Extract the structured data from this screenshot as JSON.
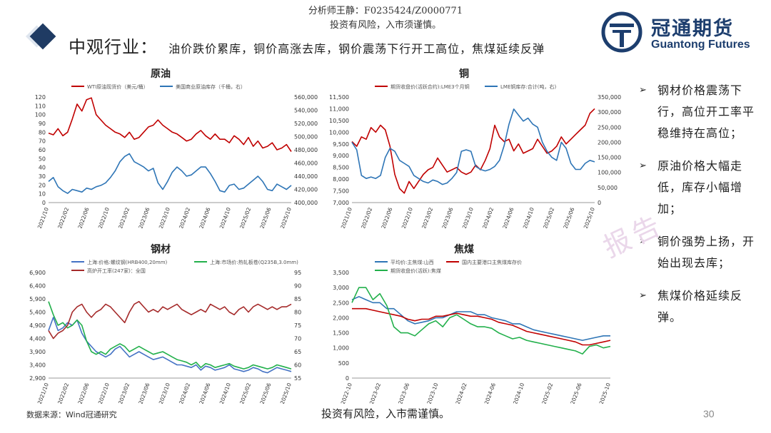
{
  "header": {
    "analyst_line": "分析师王静：F0235424/Z0000771",
    "risk_line": "投资有风险，入市须谨慎。",
    "title_main": "中观行业：",
    "title_sub": "油价跌价累库，铜价高涨去库，钢价震荡下行开工高位，焦煤延续反弹"
  },
  "logo": {
    "cn": "冠通期货",
    "en": "Guantong Futures"
  },
  "colors": {
    "red": "#c00000",
    "blue": "#2e75b6",
    "green": "#22b04b",
    "darkred": "#a52a2a",
    "navy": "#1d3e6e"
  },
  "bullets": [
    "钢材价格震荡下行，高位开工率平稳维持在高位；",
    "原油价格大幅走低，库存小幅增加；",
    "铜价强势上扬，开始出现去库；",
    "焦煤价格延续反弹。"
  ],
  "watermark": "报告",
  "source": "数据来源：Wind冠通研究",
  "footer": "投资有风险，入市需谨慎。",
  "page_number": "30",
  "chart_data": [
    {
      "type": "line",
      "title": "原油",
      "x_labels": [
        "2021/10",
        "2022/02",
        "2022/06",
        "2022/10",
        "2023/02",
        "2023/06",
        "2023/10",
        "2024/02",
        "2024/06",
        "2024/10",
        "2025/02",
        "2025/06",
        "2025/10"
      ],
      "left_ylim": [
        0,
        120
      ],
      "left_ticks": [
        "0",
        "10",
        "20",
        "30",
        "40",
        "50",
        "60",
        "70",
        "80",
        "90",
        "100",
        "110",
        "120"
      ],
      "right_ylim": [
        400000,
        560000
      ],
      "right_ticks": [
        "400,000",
        "420,000",
        "440,000",
        "460,000",
        "480,000",
        "500,000",
        "520,000",
        "540,000",
        "560,000"
      ],
      "series": [
        {
          "name": "WTI原油现货价（美元/桶）",
          "axis": "left",
          "color": "#c00000",
          "values": [
            79,
            77,
            84,
            76,
            80,
            95,
            112,
            104,
            117,
            119,
            100,
            94,
            88,
            84,
            80,
            78,
            74,
            80,
            72,
            74,
            80,
            86,
            88,
            94,
            88,
            84,
            80,
            78,
            74,
            70,
            72,
            78,
            82,
            76,
            72,
            78,
            72,
            72,
            68,
            76,
            72,
            66,
            74,
            64,
            70,
            62,
            64,
            68,
            60,
            62,
            66,
            58
          ]
        },
        {
          "name": "美国商业原油库存（千桶，右）",
          "axis": "right",
          "color": "#2e75b6",
          "values": [
            432000,
            438000,
            424000,
            418000,
            414000,
            420000,
            418000,
            416000,
            422000,
            420000,
            424000,
            426000,
            430000,
            438000,
            448000,
            462000,
            470000,
            474000,
            462000,
            458000,
            454000,
            448000,
            452000,
            430000,
            420000,
            432000,
            446000,
            454000,
            448000,
            440000,
            442000,
            448000,
            454000,
            454000,
            444000,
            432000,
            418000,
            416000,
            426000,
            428000,
            420000,
            422000,
            428000,
            434000,
            440000,
            432000,
            420000,
            418000,
            428000,
            424000,
            420000,
            426000
          ]
        }
      ]
    },
    {
      "type": "line",
      "title": "铜",
      "x_labels": [
        "2021/10",
        "2022/02",
        "2022/06",
        "2022/10",
        "2023/02",
        "2023/06",
        "2023/10",
        "2024/02",
        "2024/06",
        "2024/10",
        "2025/02",
        "2025/06",
        "2025/10"
      ],
      "left_ylim": [
        7000,
        11500
      ],
      "left_ticks": [
        "7,000",
        "7,500",
        "8,000",
        "8,500",
        "9,000",
        "9,500",
        "10,000",
        "10,500",
        "11,000",
        "11,500"
      ],
      "right_ylim": [
        0,
        350000
      ],
      "right_ticks": [
        "0",
        "50,000",
        "100,000",
        "150,000",
        "200,000",
        "250,000",
        "300,000",
        "350,000"
      ],
      "series": [
        {
          "name": "期货收盘价(活跃合约):LME3个月铜",
          "axis": "left",
          "color": "#c00000",
          "values": [
            9600,
            9400,
            9800,
            9700,
            10200,
            10000,
            10300,
            10100,
            9400,
            8200,
            7600,
            7400,
            7900,
            7600,
            7900,
            8200,
            8400,
            8500,
            8900,
            8600,
            8300,
            8400,
            8500,
            8300,
            8200,
            8300,
            8600,
            8400,
            8800,
            9300,
            10300,
            9800,
            9600,
            9700,
            9200,
            9500,
            9100,
            9200,
            9300,
            9700,
            9400,
            9100,
            9200,
            9400,
            9800,
            9500,
            9700,
            9900,
            10100,
            10300,
            10800,
            11000
          ]
        },
        {
          "name": "LME铜库存:合计(吨，右)",
          "axis": "right",
          "color": "#2e75b6",
          "values": [
            200000,
            175000,
            90000,
            80000,
            85000,
            80000,
            90000,
            150000,
            180000,
            170000,
            140000,
            130000,
            120000,
            90000,
            80000,
            70000,
            65000,
            75000,
            70000,
            60000,
            65000,
            80000,
            100000,
            170000,
            175000,
            170000,
            120000,
            110000,
            105000,
            110000,
            120000,
            140000,
            190000,
            260000,
            310000,
            290000,
            270000,
            280000,
            260000,
            250000,
            200000,
            170000,
            150000,
            140000,
            200000,
            180000,
            130000,
            110000,
            110000,
            130000,
            140000,
            135000
          ]
        }
      ]
    },
    {
      "type": "line",
      "title": "钢材",
      "x_labels": [
        "2021/10",
        "2022/02",
        "2022/06",
        "2022/10",
        "2023/02",
        "2023/06",
        "2023/10",
        "2024/02",
        "2024/06",
        "2024/10",
        "2025/02",
        "2025/06",
        "2025/10"
      ],
      "left_ylim": [
        2900,
        6900
      ],
      "left_ticks": [
        "2,900",
        "3,400",
        "3,900",
        "4,400",
        "4,900",
        "5,400",
        "5,900",
        "6,400",
        "6,900"
      ],
      "right_ylim": [
        55,
        95
      ],
      "right_ticks": [
        "55",
        "60",
        "65",
        "70",
        "75",
        "80",
        "85",
        "90",
        "95"
      ],
      "series": [
        {
          "name": "上海:价格:螺纹钢(HRB400,20mm)",
          "axis": "left",
          "color": "#4472c4",
          "values": [
            4700,
            5200,
            4700,
            4800,
            5000,
            4900,
            5100,
            4600,
            4300,
            4100,
            3900,
            3800,
            3700,
            3800,
            4000,
            4100,
            3900,
            3700,
            3800,
            3900,
            3800,
            3700,
            3600,
            3650,
            3700,
            3600,
            3500,
            3400,
            3400,
            3350,
            3300,
            3400,
            3200,
            3350,
            3300,
            3200,
            3250,
            3300,
            3400,
            3250,
            3200,
            3150,
            3200,
            3300,
            3250,
            3150,
            3100,
            3200,
            3300,
            3250,
            3200,
            3150
          ]
        },
        {
          "name": "上海:市场价:热轧板卷(Q235B,3.0mm)",
          "axis": "left",
          "color": "#22b04b",
          "values": [
            5800,
            5300,
            4900,
            5000,
            4800,
            4900,
            5100,
            4900,
            4300,
            3900,
            3800,
            3900,
            3800,
            4000,
            4100,
            4200,
            4100,
            3900,
            4000,
            4100,
            4000,
            3900,
            3800,
            3850,
            3900,
            3800,
            3700,
            3600,
            3550,
            3500,
            3400,
            3500,
            3300,
            3450,
            3400,
            3300,
            3350,
            3400,
            3450,
            3350,
            3300,
            3250,
            3300,
            3400,
            3350,
            3300,
            3250,
            3300,
            3400,
            3350,
            3300,
            3250
          ]
        },
        {
          "name": "高炉开工率(247家)：全国",
          "axis": "right",
          "color": "#a52a2a",
          "values": [
            73,
            70,
            72,
            73,
            75,
            80,
            82,
            83,
            80,
            78,
            80,
            81,
            83,
            82,
            80,
            78,
            76,
            80,
            83,
            84,
            82,
            80,
            81,
            80,
            82,
            81,
            82,
            83,
            81,
            80,
            79,
            80,
            81,
            80,
            83,
            82,
            81,
            82,
            80,
            79,
            81,
            82,
            80,
            82,
            83,
            82,
            81,
            82,
            81,
            82,
            82,
            83
          ]
        }
      ]
    },
    {
      "type": "line",
      "title": "焦煤",
      "x_labels": [
        "2022-10",
        "2023-02",
        "2023-06",
        "2023-10",
        "2024-02",
        "2024-06",
        "2024-10",
        "2025-02",
        "2025-06",
        "2025-10"
      ],
      "left_ylim": [
        0,
        3500
      ],
      "left_ticks": [
        "0",
        "500",
        "1,000",
        "1,500",
        "2,000",
        "2,500",
        "3,000",
        "3,500"
      ],
      "series": [
        {
          "name": "平均价:主焦煤:山西",
          "axis": "left",
          "color": "#2e75b6",
          "values": [
            2600,
            2700,
            2600,
            2500,
            2500,
            2300,
            2300,
            2100,
            1900,
            1800,
            1850,
            1900,
            2000,
            2000,
            2100,
            2200,
            2200,
            2200,
            2100,
            2100,
            2000,
            1950,
            1900,
            1800,
            1800,
            1700,
            1600,
            1550,
            1500,
            1450,
            1400,
            1350,
            1300,
            1250,
            1300,
            1350,
            1400,
            1400
          ]
        },
        {
          "name": "国内主要港口主焦煤库存价",
          "axis": "left",
          "color": "#c00000",
          "values": [
            2300,
            2300,
            2300,
            2250,
            2200,
            2150,
            2100,
            2050,
            1950,
            1900,
            1950,
            1950,
            2050,
            2050,
            2100,
            2150,
            2100,
            2050,
            2050,
            2000,
            1950,
            1850,
            1800,
            1750,
            1650,
            1550,
            1500,
            1450,
            1400,
            1350,
            1300,
            1250,
            1200,
            1100,
            1100,
            1150,
            1200,
            1250
          ]
        },
        {
          "name": "期货收盘价(活跃):焦煤",
          "axis": "left",
          "color": "#22b04b",
          "values": [
            2500,
            3000,
            3000,
            2600,
            2800,
            2400,
            1700,
            1500,
            1500,
            1400,
            1600,
            1800,
            1900,
            1700,
            2000,
            2100,
            1950,
            1800,
            1700,
            1700,
            1650,
            1500,
            1400,
            1300,
            1350,
            1250,
            1200,
            1150,
            1100,
            1050,
            1000,
            950,
            900,
            800,
            1050,
            1100,
            1000,
            1050
          ]
        }
      ]
    }
  ]
}
